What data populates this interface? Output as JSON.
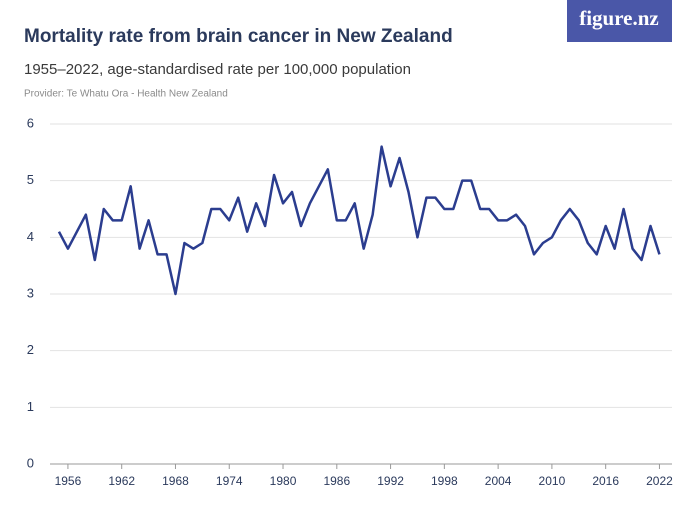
{
  "logo": "figure.nz",
  "chart_data": {
    "type": "line",
    "title": "Mortality rate from brain cancer in New Zealand",
    "subtitle": "1955–2022, age-standardised rate per 100,000 population",
    "provider": "Provider: Te Whatu Ora - Health New Zealand",
    "x": [
      1955,
      1956,
      1957,
      1958,
      1959,
      1960,
      1961,
      1962,
      1963,
      1964,
      1965,
      1966,
      1967,
      1968,
      1969,
      1970,
      1971,
      1972,
      1973,
      1974,
      1975,
      1976,
      1977,
      1978,
      1979,
      1980,
      1981,
      1982,
      1983,
      1984,
      1985,
      1986,
      1987,
      1988,
      1989,
      1990,
      1991,
      1992,
      1993,
      1994,
      1995,
      1996,
      1997,
      1998,
      1999,
      2000,
      2001,
      2002,
      2003,
      2004,
      2005,
      2006,
      2007,
      2008,
      2009,
      2010,
      2011,
      2012,
      2013,
      2014,
      2015,
      2016,
      2017,
      2018,
      2019,
      2020,
      2021,
      2022
    ],
    "series": [
      {
        "name": "Mortality rate",
        "color": "#2b3d8f",
        "values": [
          4.1,
          3.8,
          4.1,
          4.4,
          3.6,
          4.5,
          4.3,
          4.3,
          4.9,
          3.8,
          4.3,
          3.7,
          3.7,
          3.0,
          3.9,
          3.8,
          3.9,
          4.5,
          4.5,
          4.3,
          4.7,
          4.1,
          4.6,
          4.2,
          5.1,
          4.6,
          4.8,
          4.2,
          4.6,
          4.9,
          5.2,
          4.3,
          4.3,
          4.6,
          3.8,
          4.4,
          5.6,
          4.9,
          5.4,
          4.8,
          4.0,
          4.7,
          4.7,
          4.5,
          4.5,
          5.0,
          5.0,
          4.5,
          4.5,
          4.3,
          4.3,
          4.4,
          4.2,
          3.7,
          3.9,
          4.0,
          4.3,
          4.5,
          4.3,
          3.9,
          3.7,
          4.2,
          3.8,
          4.5,
          3.8,
          3.6,
          4.2,
          3.7
        ]
      }
    ],
    "xlim": [
      1954,
      2023.4
    ],
    "xticks": [
      1956,
      1962,
      1968,
      1974,
      1980,
      1986,
      1992,
      1998,
      2004,
      2010,
      2016,
      2022
    ],
    "ylim": [
      0,
      6
    ],
    "yticks": [
      0,
      1,
      2,
      3,
      4,
      5,
      6
    ],
    "grid": true
  }
}
